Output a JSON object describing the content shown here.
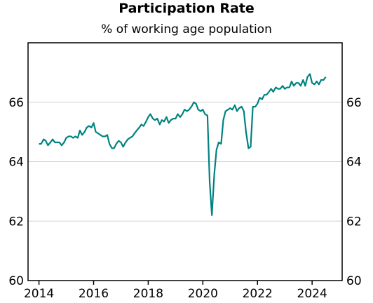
{
  "chart_data": {
    "type": "line",
    "title": "Participation Rate",
    "subtitle": "% of working age population",
    "xlabel": "",
    "ylabel": "",
    "x_ticks": [
      "2014",
      "2016",
      "2018",
      "2020",
      "2022",
      "2024"
    ],
    "y_ticks": [
      "60",
      "62",
      "64",
      "66"
    ],
    "xlim": [
      2013.6,
      2025.1
    ],
    "ylim": [
      60,
      68
    ],
    "grid": "horizontal",
    "colors": {
      "line": "#00827f",
      "grid": "#d0d0d0",
      "axis": "#000000"
    },
    "series": [
      {
        "x": [
          2014.0,
          2014.08,
          2014.17,
          2014.25,
          2014.33,
          2014.42,
          2014.5,
          2014.58,
          2014.67,
          2014.75,
          2014.83,
          2014.92,
          2015.0,
          2015.08,
          2015.17,
          2015.25,
          2015.33,
          2015.42,
          2015.5,
          2015.58,
          2015.67,
          2015.75,
          2015.83,
          2015.92,
          2016.0,
          2016.08,
          2016.17,
          2016.25,
          2016.33,
          2016.42,
          2016.5,
          2016.58,
          2016.67,
          2016.75,
          2016.83,
          2016.92,
          2017.0,
          2017.08,
          2017.17,
          2017.25,
          2017.33,
          2017.42,
          2017.5,
          2017.58,
          2017.67,
          2017.75,
          2017.83,
          2017.92,
          2018.0,
          2018.08,
          2018.17,
          2018.25,
          2018.33,
          2018.42,
          2018.5,
          2018.58,
          2018.67,
          2018.75,
          2018.83,
          2018.92,
          2019.0,
          2019.08,
          2019.17,
          2019.25,
          2019.33,
          2019.42,
          2019.5,
          2019.58,
          2019.67,
          2019.75,
          2019.83,
          2019.92,
          2020.0,
          2020.08,
          2020.17,
          2020.25,
          2020.33,
          2020.42,
          2020.5,
          2020.58,
          2020.67,
          2020.75,
          2020.83,
          2020.92,
          2021.0,
          2021.08,
          2021.17,
          2021.25,
          2021.33,
          2021.42,
          2021.5,
          2021.58,
          2021.67,
          2021.75,
          2021.83,
          2021.92,
          2022.0,
          2022.08,
          2022.17,
          2022.25,
          2022.33,
          2022.42,
          2022.5,
          2022.58,
          2022.67,
          2022.75,
          2022.83,
          2022.92,
          2023.0,
          2023.08,
          2023.17,
          2023.25,
          2023.33,
          2023.42,
          2023.5,
          2023.58,
          2023.67,
          2023.75,
          2023.83,
          2023.92,
          2024.0,
          2024.08,
          2024.17,
          2024.25,
          2024.33,
          2024.42,
          2024.5
        ],
        "y": [
          64.6,
          64.6,
          64.75,
          64.7,
          64.55,
          64.65,
          64.75,
          64.65,
          64.65,
          64.65,
          64.55,
          64.65,
          64.8,
          64.85,
          64.85,
          64.8,
          64.85,
          64.8,
          65.05,
          64.9,
          65.0,
          65.15,
          65.2,
          65.15,
          65.3,
          65.0,
          64.95,
          64.9,
          64.85,
          64.85,
          64.9,
          64.6,
          64.45,
          64.45,
          64.6,
          64.7,
          64.65,
          64.5,
          64.65,
          64.75,
          64.8,
          64.85,
          64.95,
          65.05,
          65.15,
          65.25,
          65.2,
          65.35,
          65.5,
          65.6,
          65.45,
          65.4,
          65.45,
          65.25,
          65.4,
          65.35,
          65.5,
          65.3,
          65.4,
          65.45,
          65.45,
          65.6,
          65.5,
          65.6,
          65.75,
          65.7,
          65.75,
          65.85,
          66.0,
          65.95,
          65.75,
          65.7,
          65.75,
          65.6,
          65.55,
          63.3,
          62.2,
          63.6,
          64.4,
          64.65,
          64.6,
          65.4,
          65.7,
          65.75,
          65.8,
          65.75,
          65.9,
          65.7,
          65.8,
          65.85,
          65.7,
          65.0,
          64.45,
          64.5,
          65.85,
          65.85,
          65.95,
          66.15,
          66.1,
          66.25,
          66.25,
          66.35,
          66.45,
          66.35,
          66.5,
          66.45,
          66.45,
          66.55,
          66.45,
          66.5,
          66.5,
          66.7,
          66.55,
          66.65,
          66.65,
          66.55,
          66.75,
          66.55,
          66.85,
          66.95,
          66.65,
          66.6,
          66.7,
          66.6,
          66.75,
          66.75,
          66.85
        ]
      }
    ]
  }
}
